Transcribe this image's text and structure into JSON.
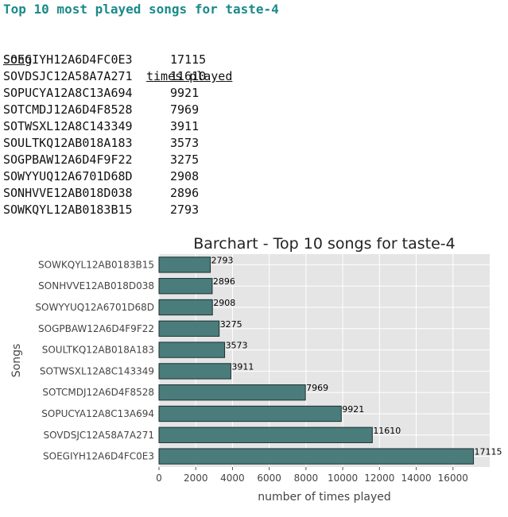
{
  "page_title": "Top 10 most played songs for taste-4",
  "table": {
    "headers": {
      "song": "Song",
      "times": "times played"
    },
    "rows": [
      {
        "song": "SOEGIYH12A6D4FC0E3",
        "times": "17115"
      },
      {
        "song": "SOVDSJC12A58A7A271",
        "times": "11610"
      },
      {
        "song": "SOPUCYA12A8C13A694",
        "times": "9921"
      },
      {
        "song": "SOTCMDJ12A6D4F8528",
        "times": "7969"
      },
      {
        "song": "SOTWSXL12A8C143349",
        "times": "3911"
      },
      {
        "song": "SOULTKQ12AB018A183",
        "times": "3573"
      },
      {
        "song": "SOGPBAW12A6D4F9F22",
        "times": "3275"
      },
      {
        "song": "SOWYYUQ12A6701D68D",
        "times": "2908"
      },
      {
        "song": "SONHVVE12AB018D038",
        "times": "2896"
      },
      {
        "song": "SOWKQYL12AB0183B15",
        "times": "2793"
      }
    ]
  },
  "chart_data": {
    "type": "bar",
    "orientation": "horizontal",
    "title": "Barchart - Top 10 songs for taste-4",
    "xlabel": "number of times played",
    "ylabel": "Songs",
    "categories": [
      "SOEGIYH12A6D4FC0E3",
      "SOVDSJC12A58A7A271",
      "SOPUCYA12A8C13A694",
      "SOTCMDJ12A6D4F8528",
      "SOTWSXL12A8C143349",
      "SOULTKQ12AB018A183",
      "SOGPBAW12A6D4F9F22",
      "SOWYYUQ12A6701D68D",
      "SONHVVE12AB018D038",
      "SOWKQYL12AB0183B15"
    ],
    "values": [
      17115,
      11610,
      9921,
      7969,
      3911,
      3573,
      3275,
      2908,
      2896,
      2793
    ],
    "xlim": [
      0,
      18000
    ],
    "xticks": [
      0,
      2000,
      4000,
      6000,
      8000,
      10000,
      12000,
      14000,
      16000
    ],
    "grid": true,
    "bar_color": "#4a7c7c",
    "background": "#e5e5e5",
    "data_labels": true
  }
}
